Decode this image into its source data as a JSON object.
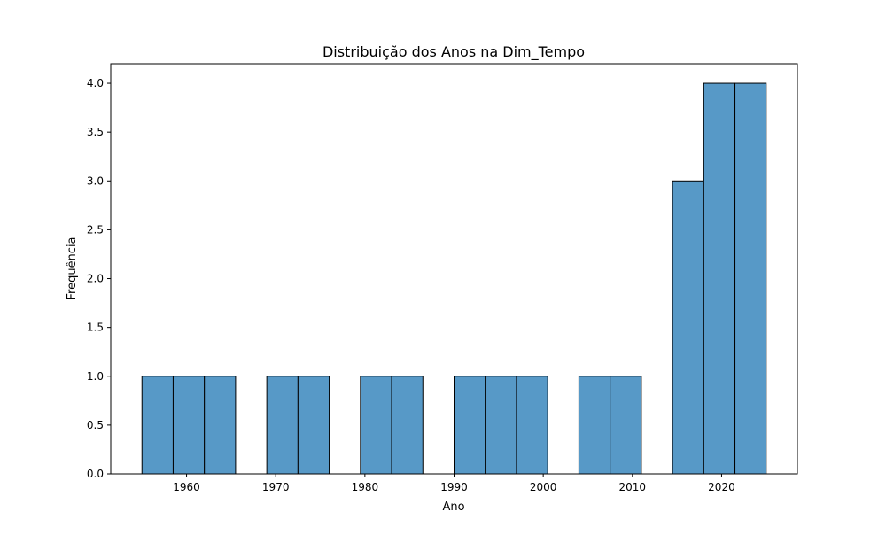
{
  "chart_data": {
    "type": "bar",
    "title": "Distribuição dos Anos na Dim_Tempo",
    "xlabel": "Ano",
    "ylabel": "Frequência",
    "xlim": [
      1951.5,
      2028.5
    ],
    "ylim": [
      0,
      4.2
    ],
    "x_ticks": [
      1960,
      1970,
      1980,
      1990,
      2000,
      2010,
      2020
    ],
    "y_ticks": [
      0.0,
      0.5,
      1.0,
      1.5,
      2.0,
      2.5,
      3.0,
      3.5,
      4.0
    ],
    "y_tick_labels": [
      "0.0",
      "0.5",
      "1.0",
      "1.5",
      "2.0",
      "2.5",
      "3.0",
      "3.5",
      "4.0"
    ],
    "grid": false,
    "bins": [
      {
        "x0": 1955.0,
        "x1": 1958.5,
        "value": 1
      },
      {
        "x0": 1958.5,
        "x1": 1962.0,
        "value": 1
      },
      {
        "x0": 1962.0,
        "x1": 1965.5,
        "value": 1
      },
      {
        "x0": 1965.5,
        "x1": 1969.0,
        "value": 0
      },
      {
        "x0": 1969.0,
        "x1": 1972.5,
        "value": 1
      },
      {
        "x0": 1972.5,
        "x1": 1976.0,
        "value": 1
      },
      {
        "x0": 1976.0,
        "x1": 1979.5,
        "value": 0
      },
      {
        "x0": 1979.5,
        "x1": 1983.0,
        "value": 1
      },
      {
        "x0": 1983.0,
        "x1": 1986.5,
        "value": 1
      },
      {
        "x0": 1986.5,
        "x1": 1990.0,
        "value": 0
      },
      {
        "x0": 1990.0,
        "x1": 1993.5,
        "value": 1
      },
      {
        "x0": 1993.5,
        "x1": 1997.0,
        "value": 1
      },
      {
        "x0": 1997.0,
        "x1": 2000.5,
        "value": 1
      },
      {
        "x0": 2000.5,
        "x1": 2004.0,
        "value": 0
      },
      {
        "x0": 2004.0,
        "x1": 2007.5,
        "value": 1
      },
      {
        "x0": 2007.5,
        "x1": 2011.0,
        "value": 1
      },
      {
        "x0": 2011.0,
        "x1": 2014.5,
        "value": 0
      },
      {
        "x0": 2014.5,
        "x1": 2018.0,
        "value": 3
      },
      {
        "x0": 2018.0,
        "x1": 2021.5,
        "value": 4
      },
      {
        "x0": 2021.5,
        "x1": 2025.0,
        "value": 4
      }
    ],
    "colors": {
      "bar_fill": "#5799c7",
      "bar_edge": "#000000",
      "axis": "#000000",
      "background": "#ffffff"
    }
  }
}
